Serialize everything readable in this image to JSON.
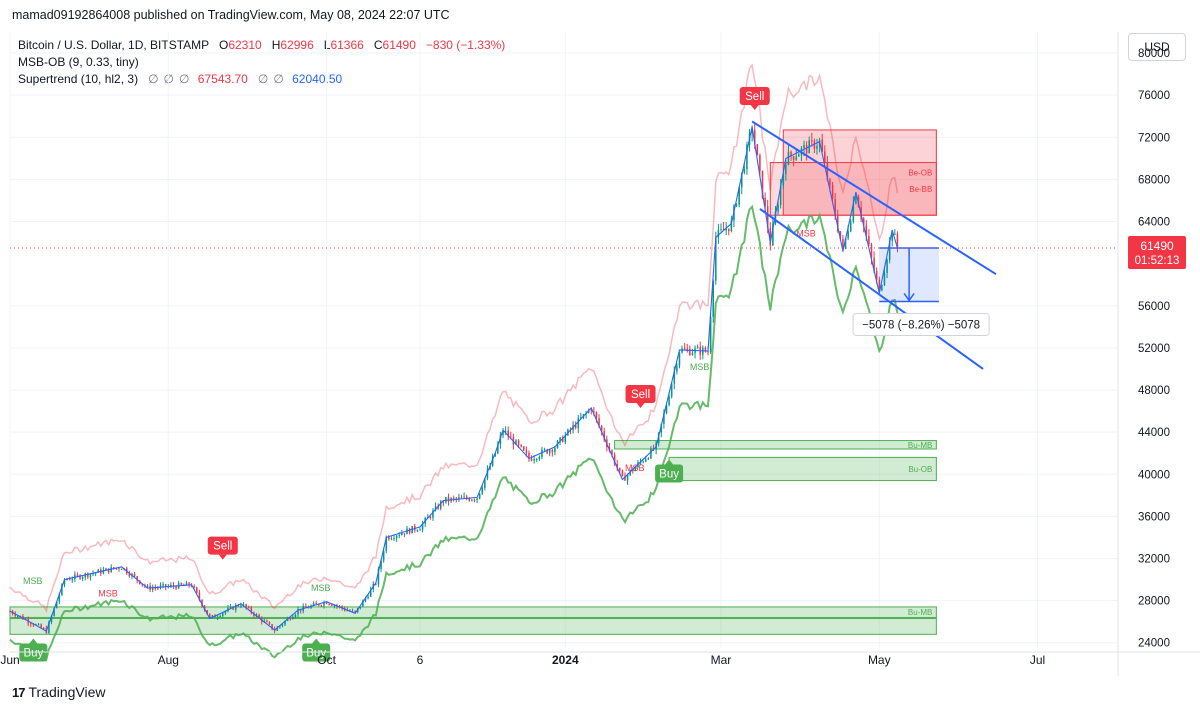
{
  "header": {
    "published": "mamad09192864008 published on TradingView.com, May 08, 2024 22:07 UTC"
  },
  "legend": {
    "symbol": "Bitcoin / U.S. Dollar, 1D, BITSTAMP",
    "o_label": "O",
    "o_value": "62310",
    "h_label": "H",
    "h_value": "62996",
    "l_label": "L",
    "l_value": "61366",
    "c_label": "C",
    "c_value": "61490",
    "change": "−830 (−1.33%)",
    "indicator1": "MSB-OB (9, 0.33, tiny)",
    "indicator2": "Supertrend (10, hl2, 3)",
    "st_glyphs1": "∅∅∅",
    "st_up": "67543.70",
    "st_glyphs2": "∅∅",
    "st_down": "62040.50"
  },
  "currency_button": "USD",
  "footer": {
    "brand": "TradingView",
    "logo_mark": "17"
  },
  "colors": {
    "up": "#089981",
    "down": "#f23645",
    "supertrend_up": "#4caf50",
    "supertrend_down": "#f23645",
    "channel": "#2962ff",
    "axis_text": "#131722"
  },
  "chart_data": {
    "type": "candlestick",
    "title": "Bitcoin / U.S. Dollar, 1D, BITSTAMP",
    "ylim": [
      23500,
      82000
    ],
    "y_ticks": [
      80000,
      76000,
      72000,
      68000,
      64000,
      56000,
      52000,
      48000,
      44000,
      40000,
      36000,
      32000,
      28000,
      24000
    ],
    "x_ticks": [
      "Jun",
      "Aug",
      "Oct",
      "6",
      "2024",
      "Mar",
      "May",
      "Jul"
    ],
    "x_tick_dates": [
      "2023-06-01",
      "2023-08-01",
      "2023-10-01",
      "2023-11-06",
      "2024-01-01",
      "2024-03-01",
      "2024-05-01",
      "2024-07-01"
    ],
    "xlim": [
      "2023-06-01",
      "2024-08-01"
    ],
    "last_price": {
      "value": "61490",
      "countdown": "01:52:13",
      "date": "2024-05-08"
    },
    "ohlc_last": {
      "open": 62310,
      "high": 62996,
      "low": 61366,
      "close": 61490
    },
    "close_series": [
      {
        "date": "2023-06-01",
        "close": 27000
      },
      {
        "date": "2023-06-10",
        "close": 25800
      },
      {
        "date": "2023-06-15",
        "close": 25100
      },
      {
        "date": "2023-06-22",
        "close": 30000
      },
      {
        "date": "2023-07-01",
        "close": 30500
      },
      {
        "date": "2023-07-14",
        "close": 31200
      },
      {
        "date": "2023-07-24",
        "close": 29200
      },
      {
        "date": "2023-08-10",
        "close": 29500
      },
      {
        "date": "2023-08-17",
        "close": 26300
      },
      {
        "date": "2023-08-29",
        "close": 27700
      },
      {
        "date": "2023-09-11",
        "close": 25200
      },
      {
        "date": "2023-09-20",
        "close": 27100
      },
      {
        "date": "2023-10-01",
        "close": 27900
      },
      {
        "date": "2023-10-12",
        "close": 26800
      },
      {
        "date": "2023-10-20",
        "close": 29700
      },
      {
        "date": "2023-10-24",
        "close": 34000
      },
      {
        "date": "2023-11-06",
        "close": 35000
      },
      {
        "date": "2023-11-15",
        "close": 37500
      },
      {
        "date": "2023-11-28",
        "close": 37800
      },
      {
        "date": "2023-12-05",
        "close": 42000
      },
      {
        "date": "2023-12-08",
        "close": 44200
      },
      {
        "date": "2023-12-18",
        "close": 41500
      },
      {
        "date": "2023-12-28",
        "close": 42600
      },
      {
        "date": "2024-01-11",
        "close": 46300
      },
      {
        "date": "2024-01-23",
        "close": 39500
      },
      {
        "date": "2024-02-05",
        "close": 42600
      },
      {
        "date": "2024-02-14",
        "close": 51800
      },
      {
        "date": "2024-02-25",
        "close": 51700
      },
      {
        "date": "2024-02-28",
        "close": 62500
      },
      {
        "date": "2024-03-05",
        "close": 63800
      },
      {
        "date": "2024-03-13",
        "close": 73000
      },
      {
        "date": "2024-03-20",
        "close": 62000
      },
      {
        "date": "2024-03-26",
        "close": 70000
      },
      {
        "date": "2024-04-08",
        "close": 71600
      },
      {
        "date": "2024-04-17",
        "close": 61200
      },
      {
        "date": "2024-04-22",
        "close": 66800
      },
      {
        "date": "2024-05-01",
        "close": 57200
      },
      {
        "date": "2024-05-06",
        "close": 63200
      },
      {
        "date": "2024-05-08",
        "close": 61490
      }
    ],
    "annotations": {
      "signals": [
        {
          "type": "Sell",
          "date": "2023-08-22",
          "price": 31800
        },
        {
          "type": "Buy",
          "date": "2023-09-27",
          "price": 24500
        },
        {
          "type": "Sell",
          "date": "2024-01-30",
          "price": 46200
        },
        {
          "type": "Buy",
          "date": "2024-02-10",
          "price": 41500
        },
        {
          "type": "Sell",
          "date": "2024-03-14",
          "price": 74500
        },
        {
          "type": "Buy",
          "date": "2023-06-10",
          "price": 24500
        }
      ],
      "zone_labels": {
        "msb": "MSB",
        "be_ob": "Be-OB",
        "be_bb": "Be-BB",
        "bu_mb": "Bu-MB",
        "bu_ob": "Bu-OB"
      },
      "measure": {
        "label": "−5078 (−8.26%) −5078",
        "from_date": "2024-05-01",
        "to_date": "2024-05-24",
        "from_price": 61490,
        "to_price": 56412
      }
    }
  }
}
